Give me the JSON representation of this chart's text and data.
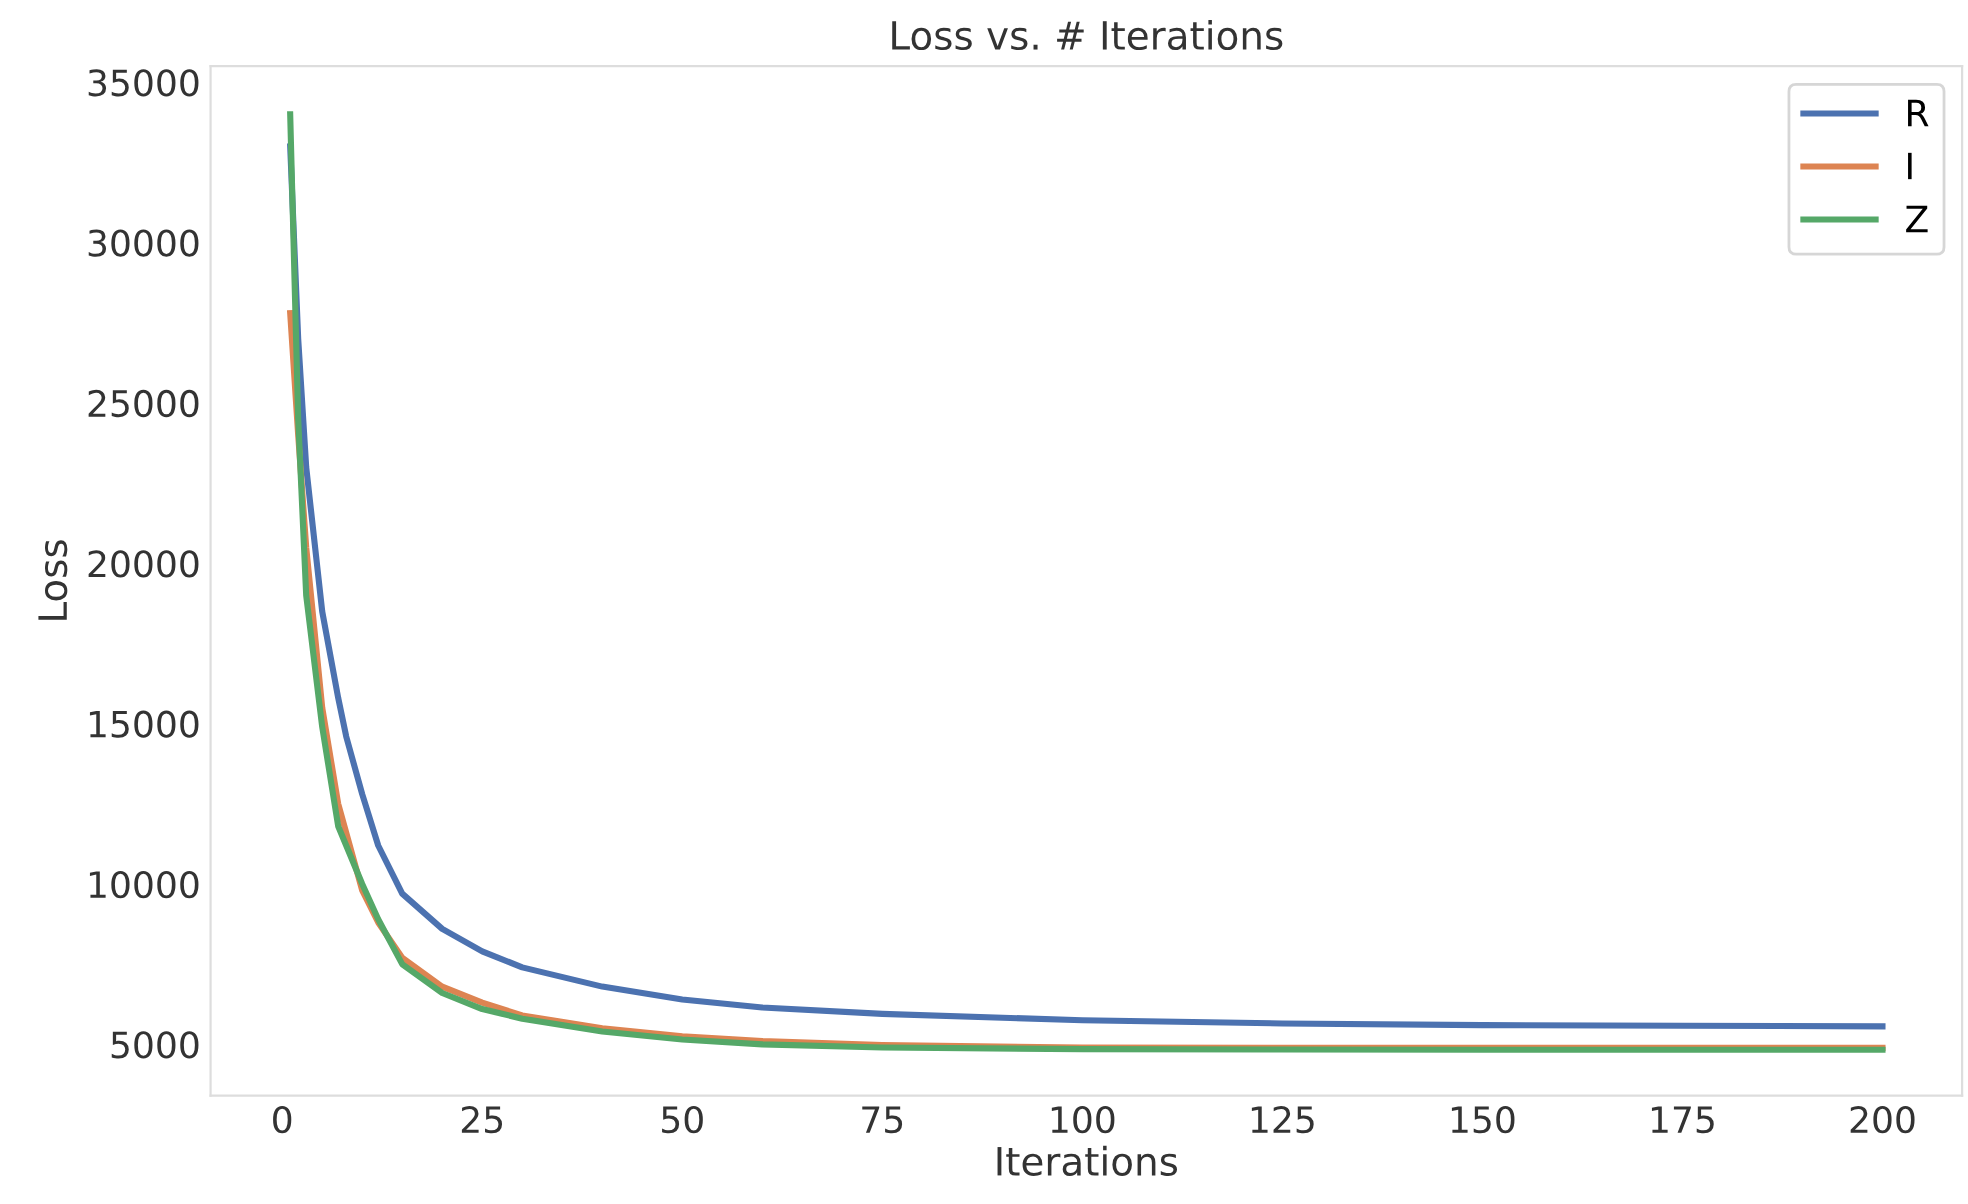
{
  "chart_data": {
    "type": "line",
    "title": "Loss vs. # Iterations",
    "xlabel": "Iterations",
    "ylabel": "Loss",
    "xlim": [
      -8.95,
      209.95
    ],
    "ylim": [
      3400,
      35500
    ],
    "xticks": [
      0,
      25,
      50,
      75,
      100,
      125,
      150,
      175,
      200
    ],
    "yticks": [
      5000,
      10000,
      15000,
      20000,
      25000,
      30000,
      35000
    ],
    "grid": false,
    "legend": "top right",
    "marker": "none",
    "line_style": "solid",
    "series": [
      {
        "name": "R",
        "color": "#4c72b0",
        "x": [
          1,
          2,
          3,
          5,
          7,
          8,
          10,
          12,
          15,
          20,
          25,
          30,
          40,
          50,
          60,
          75,
          100,
          125,
          150,
          175,
          200
        ],
        "values": [
          33000,
          27000,
          23000,
          18500,
          15800,
          14600,
          12800,
          11200,
          9700,
          8600,
          7900,
          7400,
          6800,
          6400,
          6150,
          5950,
          5750,
          5650,
          5600,
          5580,
          5560
        ]
      },
      {
        "name": "I",
        "color": "#dd8452",
        "x": [
          1,
          2,
          3,
          5,
          7,
          10,
          12,
          15,
          20,
          25,
          30,
          40,
          50,
          60,
          75,
          100,
          125,
          150,
          175,
          200
        ],
        "values": [
          27800,
          24000,
          20500,
          15500,
          12500,
          9800,
          8800,
          7700,
          6800,
          6300,
          5900,
          5500,
          5250,
          5100,
          4980,
          4900,
          4890,
          4890,
          4890,
          4890
        ]
      },
      {
        "name": "Z",
        "color": "#55a868",
        "x": [
          1,
          2,
          3,
          5,
          7,
          10,
          12,
          15,
          20,
          25,
          30,
          40,
          50,
          60,
          75,
          100,
          125,
          150,
          175,
          200
        ],
        "values": [
          34000,
          24500,
          19000,
          14900,
          11800,
          10000,
          8900,
          7500,
          6600,
          6100,
          5800,
          5400,
          5150,
          5000,
          4900,
          4850,
          4840,
          4830,
          4830,
          4830
        ]
      }
    ]
  }
}
